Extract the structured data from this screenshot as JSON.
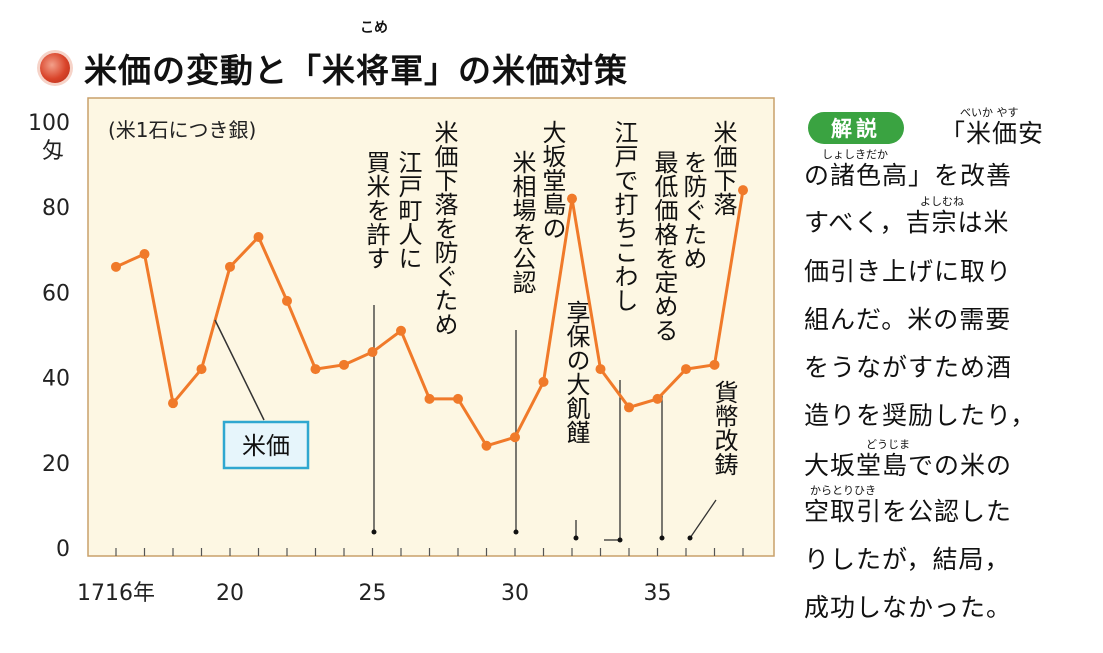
{
  "title": {
    "text": "米価の変動と「米将軍」の米価対策",
    "ruby": "こめ"
  },
  "chart_data": {
    "type": "line",
    "unit_label": "(米1石につき銀)",
    "y_unit": "匁",
    "ylim": [
      0,
      100
    ],
    "y_ticks": [
      "0",
      "20",
      "40",
      "60",
      "80",
      "100"
    ],
    "xlim": [
      1716,
      1738
    ],
    "x_ticks": [
      {
        "value": 1716,
        "label": "1716年"
      },
      {
        "value": 1720,
        "label": "20"
      },
      {
        "value": 1725,
        "label": "25"
      },
      {
        "value": 1730,
        "label": "30"
      },
      {
        "value": 1735,
        "label": "35"
      }
    ],
    "series": [
      {
        "name": "米価",
        "color": "#f07a2a",
        "x": [
          1716,
          1717,
          1718,
          1719,
          1720,
          1721,
          1722,
          1723,
          1724,
          1725,
          1726,
          1727,
          1728,
          1729,
          1730,
          1731,
          1732,
          1733,
          1734,
          1735,
          1736,
          1737,
          1738
        ],
        "y": [
          66,
          69,
          34,
          42,
          66,
          73,
          58,
          42,
          43,
          46,
          51,
          35,
          35,
          24,
          26,
          39,
          82,
          42,
          33,
          35,
          42,
          43,
          84
        ]
      }
    ],
    "annotations": [
      {
        "x": 1725,
        "text": "米価下落を防ぐため"
      },
      {
        "x": 1725,
        "text": "江戸町人に"
      },
      {
        "x": 1725,
        "text": "買米を許す"
      },
      {
        "x": 1730,
        "text": "大坂堂島の"
      },
      {
        "x": 1730,
        "text": "米相場を公認"
      },
      {
        "x": 1732,
        "text": "享保の大飢饉"
      },
      {
        "x": 1733,
        "text": "江戸で打ちこわし"
      },
      {
        "x": 1735,
        "text": "米価下落"
      },
      {
        "x": 1735,
        "text": "を防ぐため"
      },
      {
        "x": 1735,
        "text": "最低価格を定める"
      },
      {
        "x": 1736,
        "text": "貨幣改鋳"
      }
    ]
  },
  "explanation": {
    "badge": "解説",
    "lines": [
      "「米価安",
      "の諸色高」を改善",
      "すべく，吉宗は米",
      "価引き上げに取り",
      "組んだ。米の需要",
      "をうながすため酒",
      "造りを奨励したり，",
      "大坂堂島での米の",
      "空取引を公認した",
      "りしたが，結局，",
      "成功しなかった。"
    ],
    "rubies": [
      "べいか やす",
      "しょしきだか",
      "よしむね",
      "どうじま",
      "からとりひき"
    ]
  }
}
